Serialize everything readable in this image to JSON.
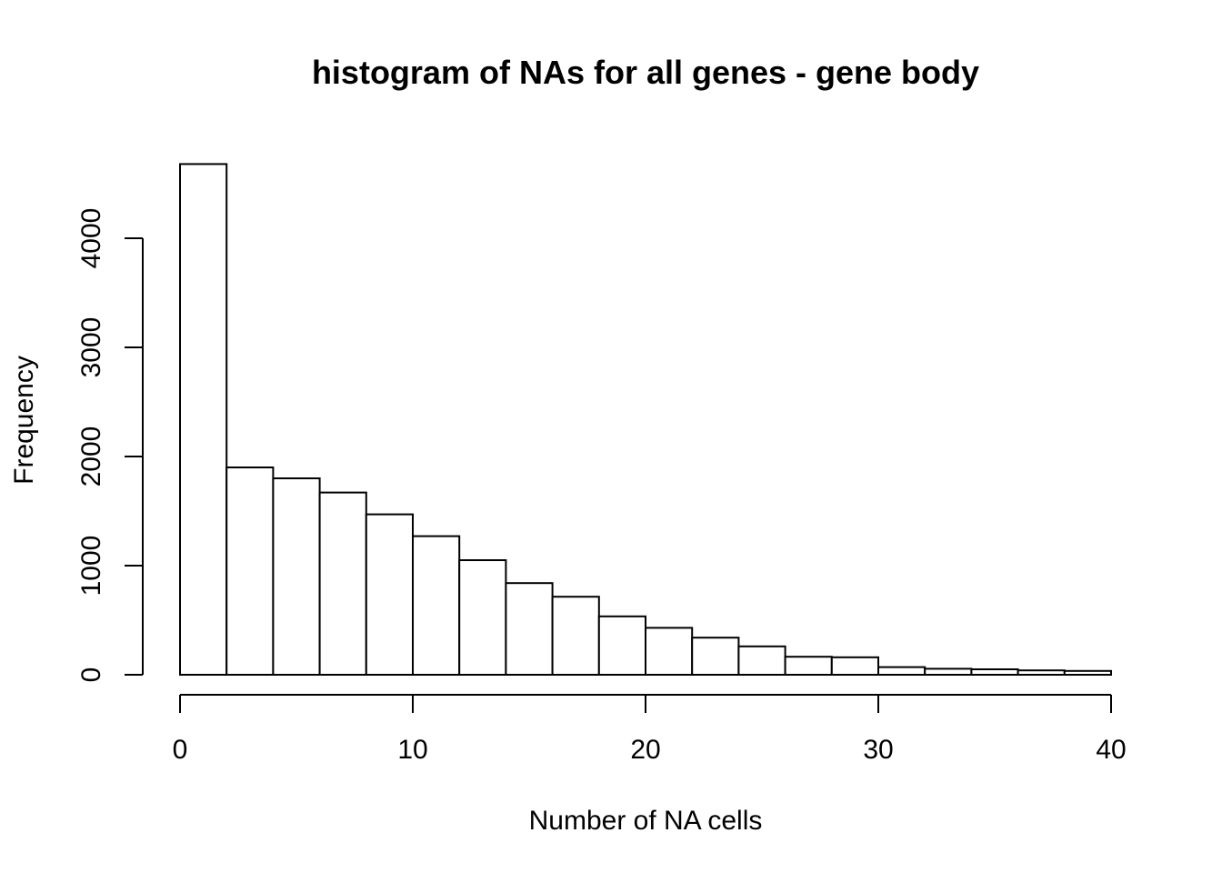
{
  "chart_data": {
    "type": "bar",
    "title": "histogram of NAs for all genes - gene body",
    "xlabel": "Number of NA cells",
    "ylabel": "Frequency",
    "xlim": [
      0,
      40
    ],
    "ylim": [
      0,
      4800
    ],
    "bin_edges": [
      0,
      2,
      4,
      6,
      8,
      10,
      12,
      14,
      16,
      18,
      20,
      22,
      24,
      26,
      28,
      30,
      32,
      34,
      36,
      38,
      40
    ],
    "values": [
      4680,
      1900,
      1800,
      1670,
      1470,
      1270,
      1050,
      840,
      715,
      535,
      430,
      340,
      260,
      165,
      160,
      70,
      55,
      50,
      40,
      35
    ],
    "x_ticks": [
      0,
      10,
      20,
      30,
      40
    ],
    "y_ticks": [
      0,
      1000,
      2000,
      3000,
      4000
    ],
    "grid": false
  }
}
